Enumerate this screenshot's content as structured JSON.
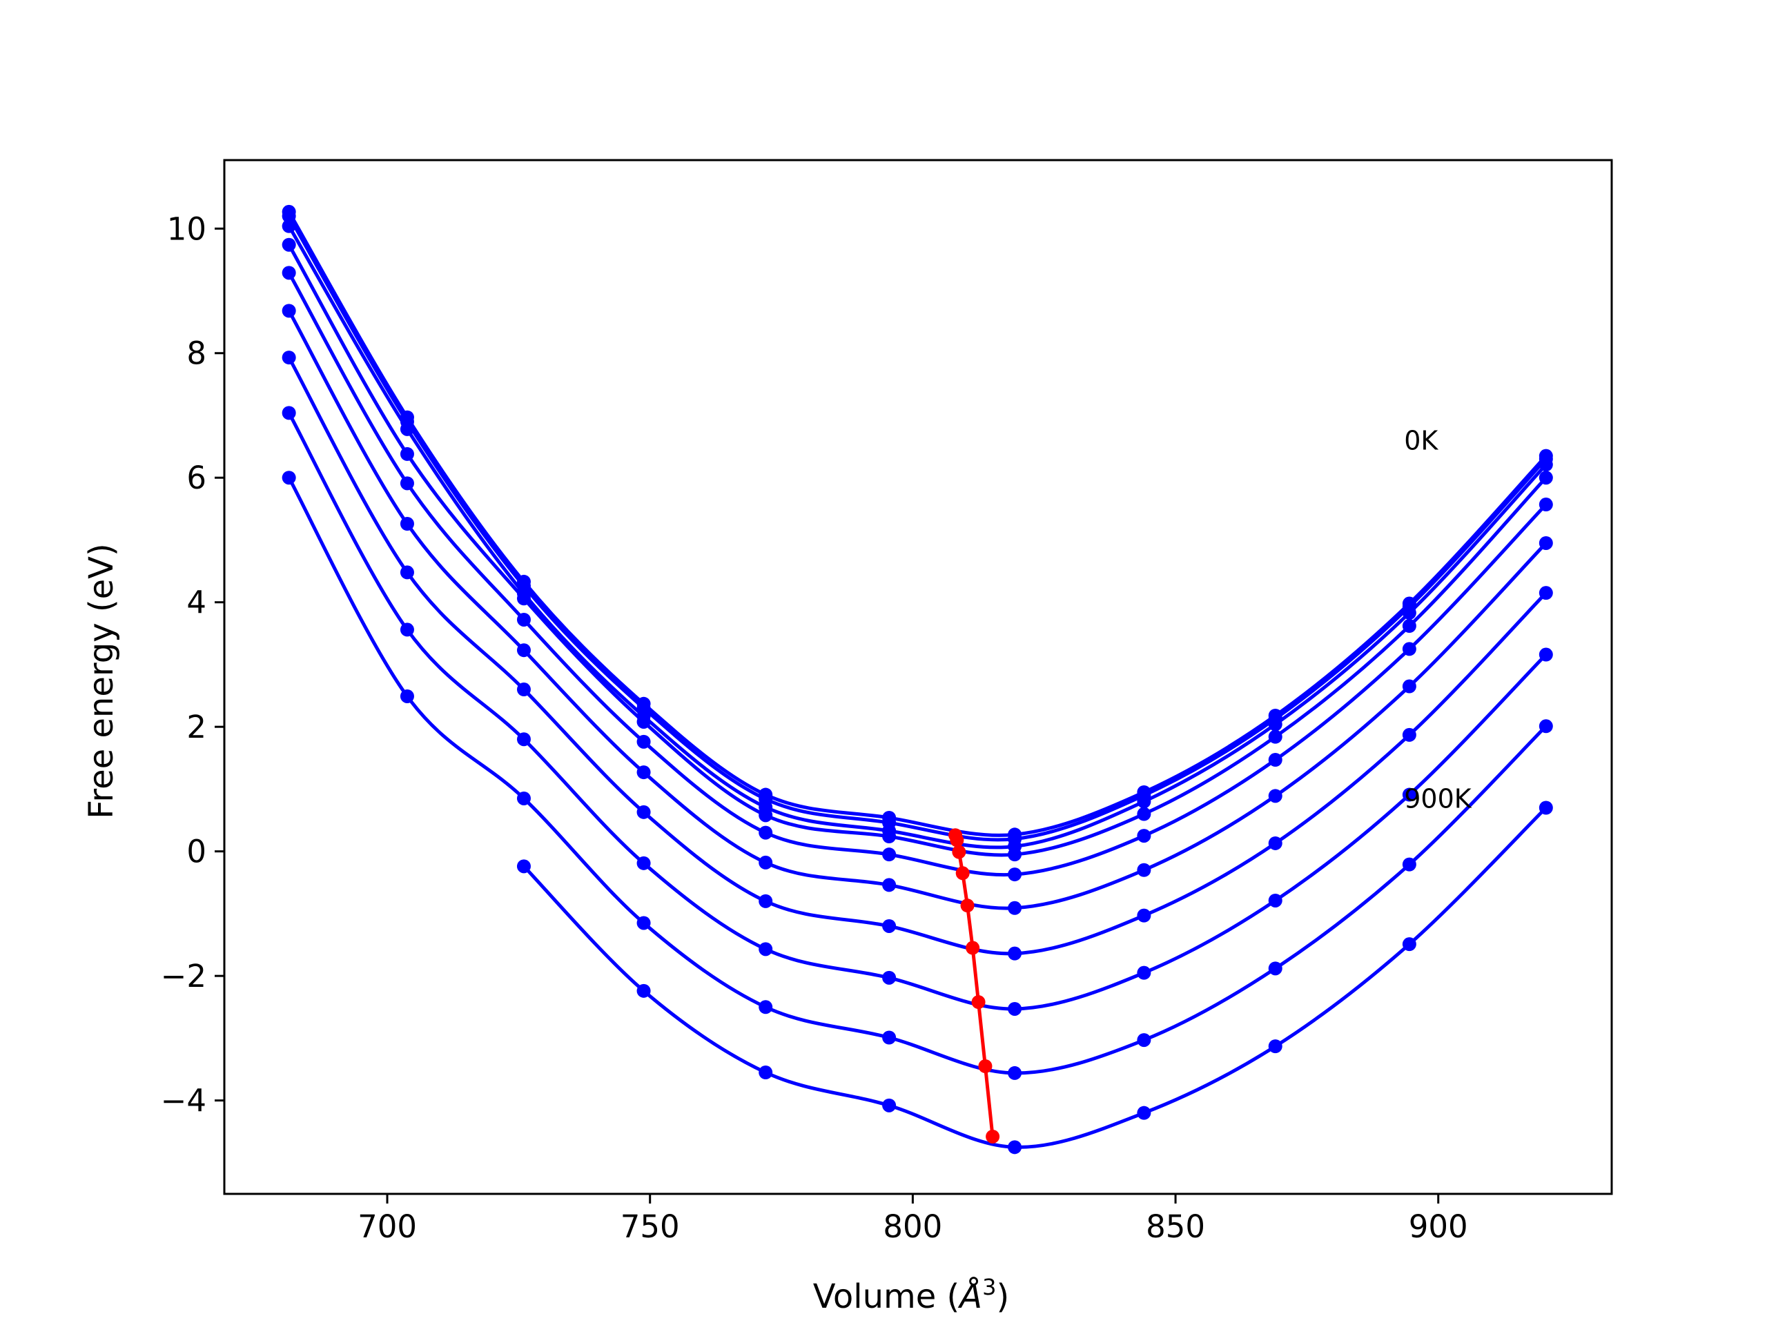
{
  "chart_data": {
    "type": "line",
    "title": "",
    "xlabel": "Volume (Å³)",
    "xlabel_parts": {
      "text": "Volume (",
      "symbol": "Å",
      "exponent": "3",
      "close": ")"
    },
    "ylabel": "Free energy (eV)",
    "xlim": [
      669,
      933
    ],
    "ylim": [
      -5.5,
      11.1
    ],
    "xticks": [
      700,
      750,
      800,
      850,
      900
    ],
    "xtick_labels": [
      "700",
      "750",
      "800",
      "850",
      "900"
    ],
    "yticks": [
      -4,
      -2,
      0,
      2,
      4,
      6,
      8,
      10
    ],
    "ytick_labels": [
      "−4",
      "−2",
      "0",
      "2",
      "4",
      "6",
      "8",
      "10"
    ],
    "grid": false,
    "colors": {
      "curves": "#0000ff",
      "minimum_path": "#ff0000"
    },
    "x": [
      681.3,
      703.8,
      726.0,
      748.8,
      772.0,
      795.5,
      819.4,
      844.0,
      869.0,
      894.5,
      920.5
    ],
    "series": [
      {
        "values": [
          10.27,
          6.97,
          4.33,
          2.37,
          0.91,
          0.54,
          0.27,
          0.95,
          2.18,
          3.98,
          6.35
        ]
      },
      {
        "values": [
          10.2,
          6.9,
          4.26,
          2.3,
          0.84,
          0.46,
          0.2,
          0.9,
          2.13,
          3.93,
          6.3
        ]
      },
      {
        "values": [
          10.04,
          6.78,
          4.14,
          2.17,
          0.71,
          0.33,
          0.08,
          0.8,
          2.04,
          3.83,
          6.21
        ]
      },
      {
        "values": [
          9.74,
          6.38,
          4.06,
          2.08,
          0.58,
          0.24,
          -0.05,
          0.6,
          1.84,
          3.62,
          6.0
        ]
      },
      {
        "values": [
          9.29,
          5.91,
          3.72,
          1.76,
          0.3,
          -0.05,
          -0.37,
          0.25,
          1.47,
          3.25,
          5.57
        ]
      },
      {
        "values": [
          8.68,
          5.26,
          3.23,
          1.27,
          -0.18,
          -0.54,
          -0.91,
          -0.3,
          0.89,
          2.65,
          4.95
        ]
      },
      {
        "values": [
          7.93,
          4.48,
          2.6,
          0.63,
          -0.8,
          -1.2,
          -1.64,
          -1.03,
          0.13,
          1.87,
          4.15
        ]
      },
      {
        "values": [
          7.04,
          3.56,
          1.8,
          -0.19,
          -1.57,
          -2.03,
          -2.53,
          -1.95,
          -0.79,
          0.91,
          3.16
        ]
      },
      {
        "values": [
          6.0,
          2.49,
          0.85,
          -1.15,
          -2.5,
          -2.99,
          -3.56,
          -3.03,
          -1.88,
          -0.21,
          2.01
        ]
      },
      {
        "values": [
          null,
          null,
          -0.24,
          -2.24,
          -3.55,
          -4.08,
          -4.75,
          -4.2,
          -3.13,
          -1.49,
          0.7
        ]
      }
    ],
    "minimum_path": {
      "x": [
        808.1,
        808.4,
        808.8,
        809.5,
        810.4,
        811.4,
        812.5,
        813.8,
        815.2
      ],
      "y": [
        0.26,
        0.18,
        -0.01,
        -0.35,
        -0.87,
        -1.55,
        -2.42,
        -3.45,
        -4.58
      ]
    },
    "annotations": [
      {
        "text": "0K",
        "x": 893.5,
        "y": 6.45
      },
      {
        "text": "900K",
        "x": 893.5,
        "y": 0.7
      }
    ]
  }
}
